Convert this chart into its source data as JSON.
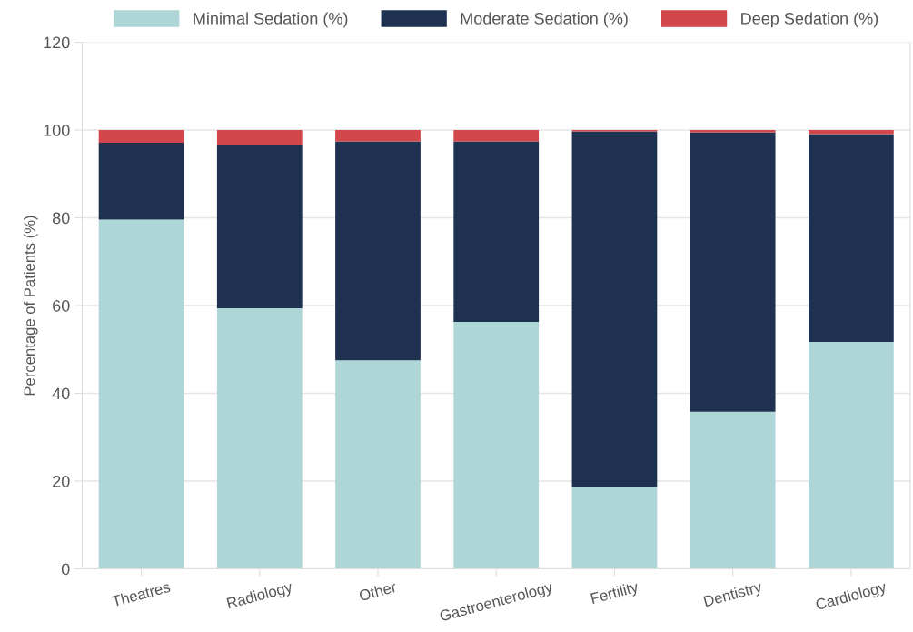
{
  "chart_data": {
    "type": "bar",
    "stacked": true,
    "ylabel": "Percentage of Patients (%)",
    "categories": [
      "Theatres",
      "Radiology",
      "Other",
      "Gastroenterology",
      "Fertility",
      "Dentistry",
      "Cardiology"
    ],
    "series": [
      {
        "name": "Minimal Sedation (%)",
        "color": "#afd6d6",
        "values": [
          79.6,
          59.4,
          47.5,
          56.3,
          18.6,
          35.8,
          51.7
        ]
      },
      {
        "name": "Moderate Sedation (%)",
        "color": "#1f3150",
        "values": [
          17.5,
          37.1,
          49.9,
          41.1,
          81.1,
          63.7,
          47.4
        ]
      },
      {
        "name": "Deep Sedation (%)",
        "color": "#d2464c",
        "values": [
          2.9,
          3.5,
          2.6,
          2.6,
          0.3,
          0.5,
          0.9
        ]
      }
    ],
    "ylim": [
      0,
      120
    ],
    "yticks": [
      0,
      20,
      40,
      60,
      80,
      100,
      120
    ],
    "grid": "y",
    "legend": "top"
  }
}
